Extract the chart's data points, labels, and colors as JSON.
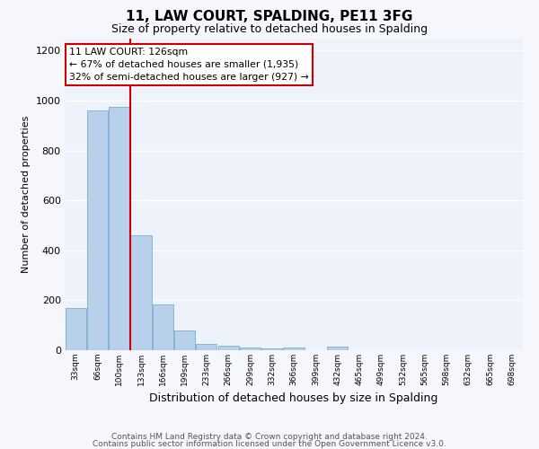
{
  "title": "11, LAW COURT, SPALDING, PE11 3FG",
  "subtitle": "Size of property relative to detached houses in Spalding",
  "xlabel": "Distribution of detached houses by size in Spalding",
  "ylabel": "Number of detached properties",
  "bar_color": "#b8d0ea",
  "bar_edge_color": "#7aaecc",
  "categories": [
    "33sqm",
    "66sqm",
    "100sqm",
    "133sqm",
    "166sqm",
    "199sqm",
    "233sqm",
    "266sqm",
    "299sqm",
    "332sqm",
    "366sqm",
    "399sqm",
    "432sqm",
    "465sqm",
    "499sqm",
    "532sqm",
    "565sqm",
    "598sqm",
    "632sqm",
    "665sqm",
    "698sqm"
  ],
  "values": [
    170,
    960,
    975,
    460,
    185,
    80,
    25,
    18,
    12,
    8,
    10,
    0,
    15,
    0,
    0,
    0,
    0,
    0,
    0,
    0,
    0
  ],
  "ylim": [
    0,
    1250
  ],
  "yticks": [
    0,
    200,
    400,
    600,
    800,
    1000,
    1200
  ],
  "red_line_x": 2.5,
  "annotation_line1": "11 LAW COURT: 126sqm",
  "annotation_line2": "← 67% of detached houses are smaller (1,935)",
  "annotation_line3": "32% of semi-detached houses are larger (927) →",
  "annotation_box_color": "#ffffff",
  "annotation_box_edge_color": "#cc0000",
  "red_line_color": "#cc0000",
  "plot_bg_color": "#eef2fa",
  "fig_bg_color": "#f5f7fd",
  "grid_color": "#ffffff",
  "footer_line1": "Contains HM Land Registry data © Crown copyright and database right 2024.",
  "footer_line2": "Contains public sector information licensed under the Open Government Licence v3.0."
}
